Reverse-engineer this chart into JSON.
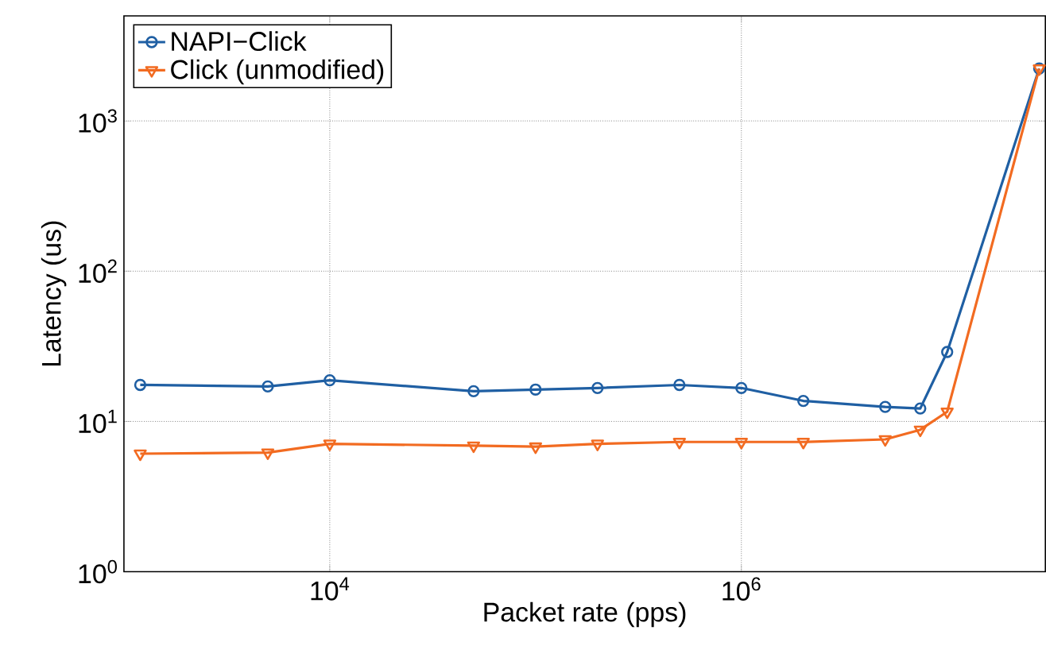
{
  "chart_data": {
    "type": "line",
    "xlabel": "Packet rate (pps)",
    "ylabel": "Latency (us)",
    "log": "xy",
    "xlim": [
      1000,
      30000000
    ],
    "ylim": [
      1,
      5000
    ],
    "xticks": [
      {
        "value": 10000,
        "label": "10$^{4}$"
      },
      {
        "value": 1000000,
        "label": "10$^{6}$"
      }
    ],
    "yticks": [
      {
        "value": 1,
        "label": "10$^{0}$"
      },
      {
        "value": 10,
        "label": "10$^{1}$"
      },
      {
        "value": 100,
        "label": "10$^{2}$"
      },
      {
        "value": 1000,
        "label": "10$^{3}$"
      }
    ],
    "grid": true,
    "legend": "top left",
    "line_style": "solid",
    "x": [
      1200,
      5000,
      10000,
      50000,
      100000,
      200000,
      500000,
      1000000,
      2000000,
      5000000,
      7400000,
      10000000,
      28000000
    ],
    "series": [
      {
        "name": "NAPI−Click",
        "color": "#1f5fa3",
        "marker": "circle",
        "values": [
          17.5,
          17.1,
          18.8,
          15.9,
          16.3,
          16.7,
          17.5,
          16.7,
          13.7,
          12.5,
          12.2,
          29,
          2230
        ]
      },
      {
        "name": "Click (unmodified)",
        "color": "#f26b21",
        "marker": "triangle",
        "values": [
          6.1,
          6.2,
          7.1,
          6.9,
          6.8,
          7.1,
          7.3,
          7.3,
          7.3,
          7.6,
          8.8,
          11.6,
          2230
        ]
      }
    ]
  }
}
